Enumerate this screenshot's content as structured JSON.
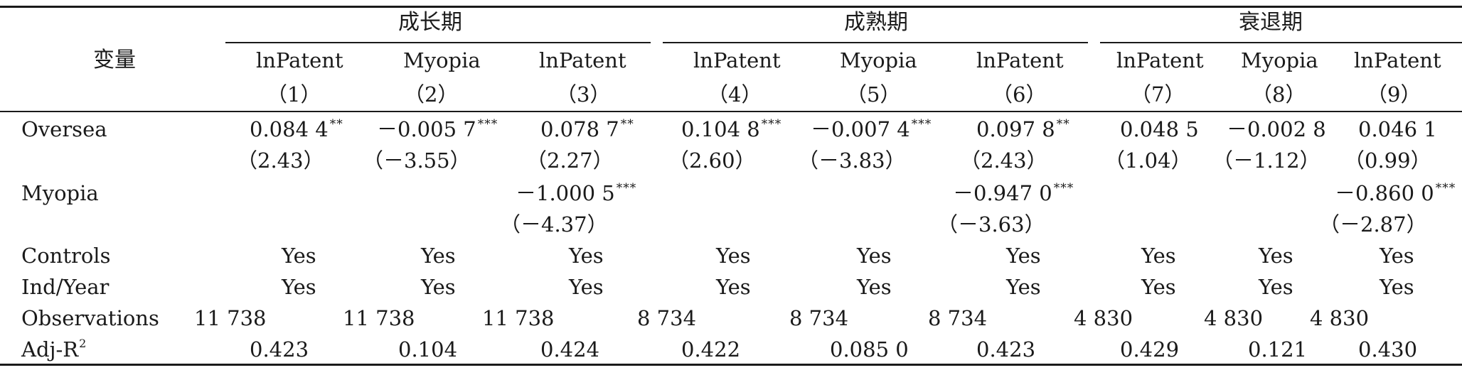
{
  "table": {
    "row_header_label": "变量",
    "groups": [
      "成长期",
      "成熟期",
      "衰退期"
    ],
    "dependent_vars": [
      "lnPatent",
      "Myopia",
      "lnPatent",
      "lnPatent",
      "Myopia",
      "lnPatent",
      "lnPatent",
      "Myopia",
      "lnPatent"
    ],
    "column_numbers": [
      "（1）",
      "（2）",
      "（3）",
      "（4）",
      "（5）",
      "（6）",
      "（7）",
      "（8）",
      "（9）"
    ],
    "rows": {
      "oversea": {
        "label": "Oversea",
        "coef": [
          "0.084 4",
          "－0.005 7",
          "0.078 7",
          "0.104 8",
          "－0.007 4",
          "0.097 8",
          "0.048 5",
          "－0.002 8",
          "0.046 1"
        ],
        "sig": [
          "**",
          "***",
          "**",
          "***",
          "***",
          "**",
          "",
          "",
          ""
        ],
        "t": [
          "（2.43）",
          "（－3.55）",
          "（2.27）",
          "（2.60）",
          "（－3.83）",
          "（2.43）",
          "（1.04）",
          "（－1.12）",
          "（0.99）"
        ]
      },
      "myopia": {
        "label": "Myopia",
        "coef": [
          "－1.000 5",
          "－0.947 0",
          "－0.860 0"
        ],
        "sig": [
          "***",
          "***",
          "***"
        ],
        "t": [
          "（－4.37）",
          "（－3.63）",
          "（－2.87）"
        ]
      },
      "controls": {
        "label": "Controls",
        "values": [
          "Yes",
          "Yes",
          "Yes",
          "Yes",
          "Yes",
          "Yes",
          "Yes",
          "Yes",
          "Yes"
        ]
      },
      "ind_year": {
        "label": "Ind/Year",
        "values": [
          "Yes",
          "Yes",
          "Yes",
          "Yes",
          "Yes",
          "Yes",
          "Yes",
          "Yes",
          "Yes"
        ]
      },
      "observations": {
        "label": "Observations",
        "values": [
          "11 738",
          "11 738",
          "11 738",
          "8 734",
          "8 734",
          "8 734",
          "4 830",
          "4 830",
          "4 830"
        ]
      },
      "adj_r2": {
        "label": "Adj-R",
        "label_sup": "2",
        "values": [
          "0.423",
          "0.104",
          "0.424",
          "0.422",
          "0.085 0",
          "0.423",
          "0.429",
          "0.121",
          "0.430"
        ]
      }
    }
  }
}
